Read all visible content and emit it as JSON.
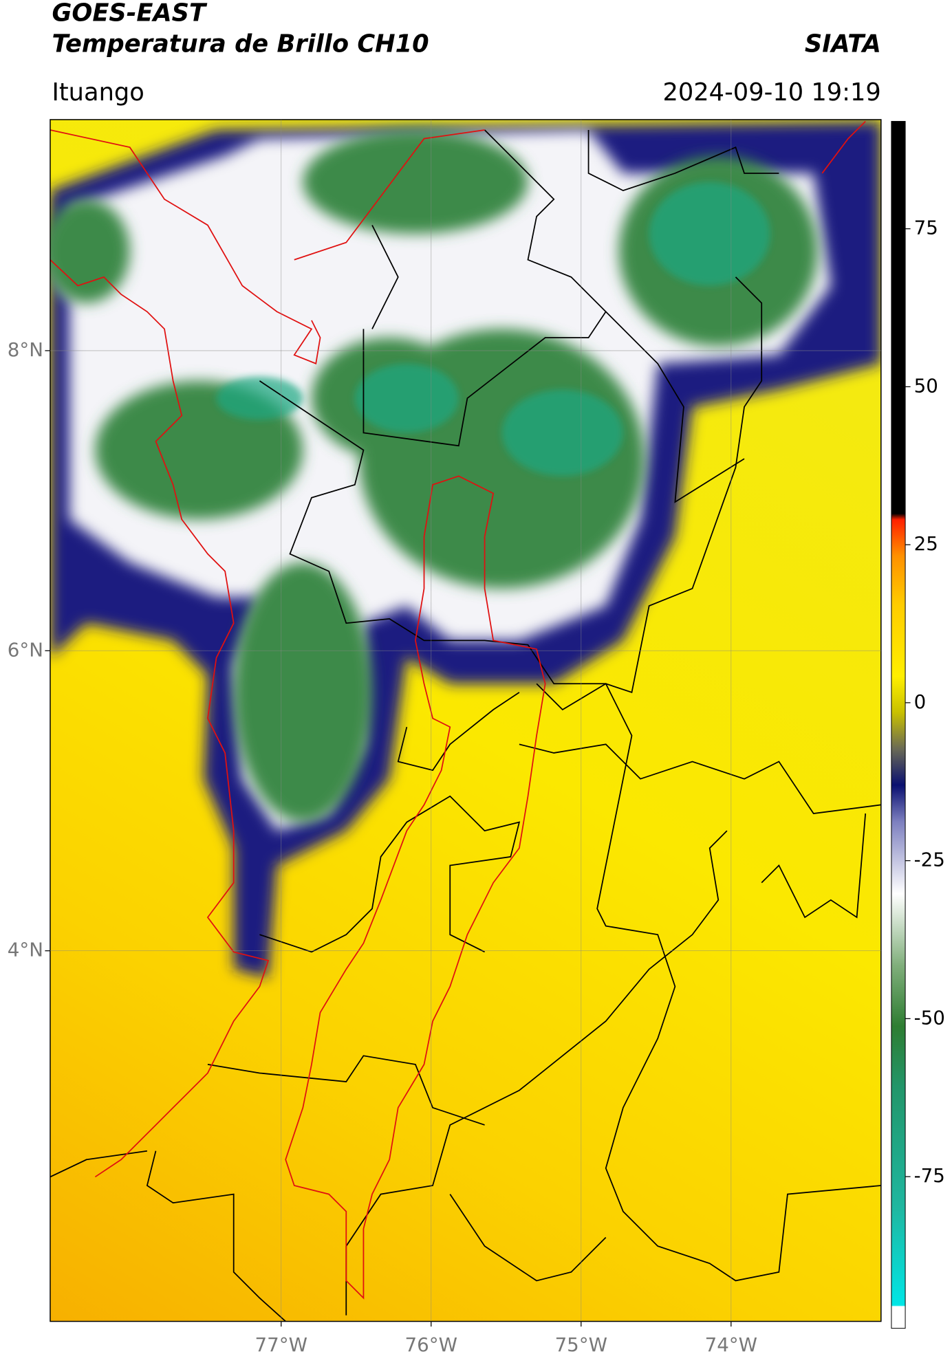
{
  "header": {
    "title": "GOES-EAST",
    "subtitle": "Temperatura de Brillo CH10",
    "organization": "SIATA",
    "location": "Ituango",
    "datetime": "2024-09-10 19:19"
  },
  "map": {
    "xlim": [
      -78.54,
      -73.0
    ],
    "ylim": [
      1.53,
      9.54
    ],
    "xticks": [
      {
        "value": -77,
        "label": "77°W"
      },
      {
        "value": -76,
        "label": "76°W"
      },
      {
        "value": -75,
        "label": "75°W"
      },
      {
        "value": -74,
        "label": "74°W"
      }
    ],
    "yticks": [
      {
        "value": 8,
        "label": "8°N"
      },
      {
        "value": 6,
        "label": "6°N"
      },
      {
        "value": 4,
        "label": "4°N"
      }
    ],
    "grid": true
  },
  "colorbar": {
    "ylim": [
      -99,
      92
    ],
    "yticks": [
      75,
      50,
      25,
      0,
      -25,
      -50,
      -75
    ]
  }
}
